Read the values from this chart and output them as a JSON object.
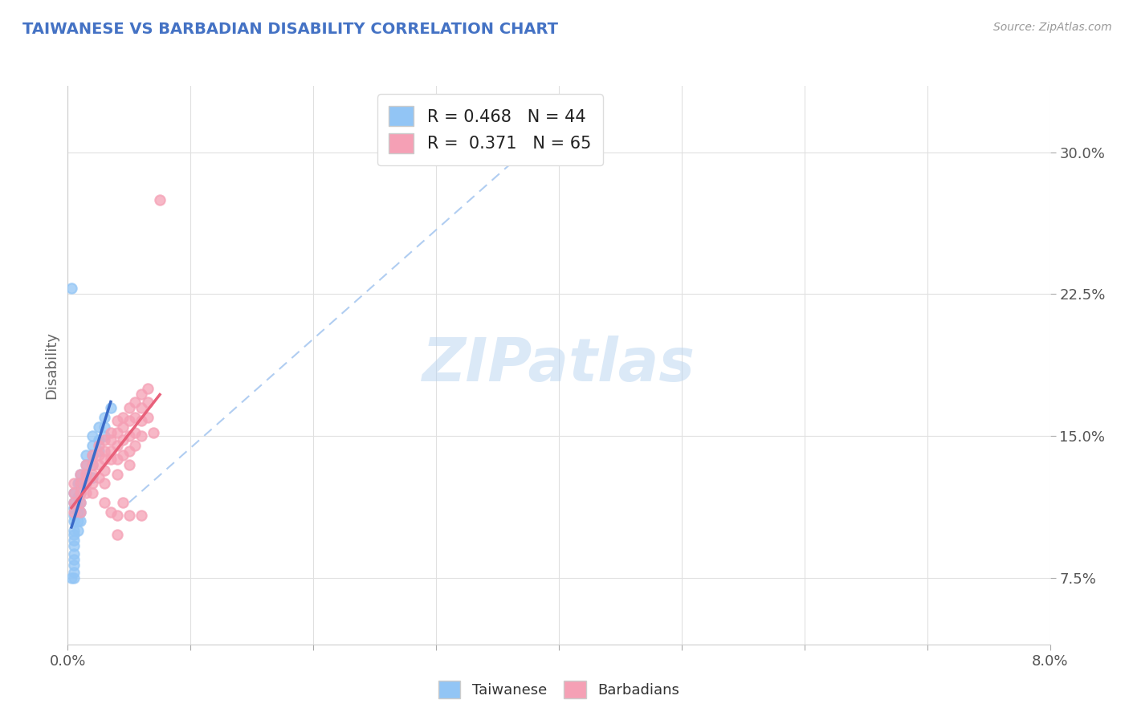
{
  "title": "TAIWANESE VS BARBADIAN DISABILITY CORRELATION CHART",
  "source": "Source: ZipAtlas.com",
  "ylabel": "Disability",
  "ylabel_ticks": [
    "7.5%",
    "15.0%",
    "22.5%",
    "30.0%"
  ],
  "ytick_vals": [
    0.075,
    0.15,
    0.225,
    0.3
  ],
  "xlim": [
    0.0,
    0.08
  ],
  "ylim": [
    0.04,
    0.335
  ],
  "legend_r1": "R = 0.468   N = 44",
  "legend_r2": "R =  0.371   N = 65",
  "taiwanese_color": "#92C5F5",
  "barbadian_color": "#F5A0B5",
  "taiwanese_line_color": "#3A6AC8",
  "barbadian_line_color": "#E8607A",
  "dashed_line_color": "#A8C8F0",
  "background_color": "#FFFFFF",
  "grid_color": "#E0E0E0",
  "watermark": "ZIPatlas",
  "taiwanese_points": [
    [
      0.0005,
      0.12
    ],
    [
      0.0005,
      0.115
    ],
    [
      0.0005,
      0.112
    ],
    [
      0.0005,
      0.108
    ],
    [
      0.0005,
      0.105
    ],
    [
      0.0005,
      0.1
    ],
    [
      0.0005,
      0.098
    ],
    [
      0.0005,
      0.095
    ],
    [
      0.0005,
      0.092
    ],
    [
      0.0005,
      0.088
    ],
    [
      0.0005,
      0.085
    ],
    [
      0.0005,
      0.082
    ],
    [
      0.0005,
      0.078
    ],
    [
      0.0005,
      0.075
    ],
    [
      0.0008,
      0.125
    ],
    [
      0.0008,
      0.118
    ],
    [
      0.0008,
      0.113
    ],
    [
      0.0008,
      0.11
    ],
    [
      0.0008,
      0.105
    ],
    [
      0.0008,
      0.1
    ],
    [
      0.001,
      0.13
    ],
    [
      0.001,
      0.125
    ],
    [
      0.001,
      0.12
    ],
    [
      0.001,
      0.115
    ],
    [
      0.001,
      0.11
    ],
    [
      0.001,
      0.105
    ],
    [
      0.0015,
      0.14
    ],
    [
      0.0015,
      0.135
    ],
    [
      0.0015,
      0.13
    ],
    [
      0.0015,
      0.125
    ],
    [
      0.002,
      0.15
    ],
    [
      0.002,
      0.145
    ],
    [
      0.002,
      0.14
    ],
    [
      0.002,
      0.135
    ],
    [
      0.002,
      0.128
    ],
    [
      0.0025,
      0.155
    ],
    [
      0.0025,
      0.148
    ],
    [
      0.0025,
      0.142
    ],
    [
      0.003,
      0.16
    ],
    [
      0.003,
      0.155
    ],
    [
      0.003,
      0.15
    ],
    [
      0.0035,
      0.165
    ],
    [
      0.0003,
      0.075
    ],
    [
      0.0003,
      0.228
    ]
  ],
  "barbadian_points": [
    [
      0.0005,
      0.125
    ],
    [
      0.0005,
      0.12
    ],
    [
      0.0005,
      0.115
    ],
    [
      0.0005,
      0.11
    ],
    [
      0.001,
      0.13
    ],
    [
      0.001,
      0.125
    ],
    [
      0.001,
      0.12
    ],
    [
      0.001,
      0.115
    ],
    [
      0.001,
      0.11
    ],
    [
      0.0015,
      0.135
    ],
    [
      0.0015,
      0.13
    ],
    [
      0.0015,
      0.125
    ],
    [
      0.0015,
      0.12
    ],
    [
      0.002,
      0.14
    ],
    [
      0.002,
      0.135
    ],
    [
      0.002,
      0.13
    ],
    [
      0.002,
      0.125
    ],
    [
      0.002,
      0.12
    ],
    [
      0.0025,
      0.145
    ],
    [
      0.0025,
      0.14
    ],
    [
      0.0025,
      0.135
    ],
    [
      0.0025,
      0.128
    ],
    [
      0.003,
      0.148
    ],
    [
      0.003,
      0.142
    ],
    [
      0.003,
      0.138
    ],
    [
      0.003,
      0.132
    ],
    [
      0.003,
      0.125
    ],
    [
      0.0035,
      0.152
    ],
    [
      0.0035,
      0.148
    ],
    [
      0.0035,
      0.142
    ],
    [
      0.0035,
      0.138
    ],
    [
      0.004,
      0.158
    ],
    [
      0.004,
      0.152
    ],
    [
      0.004,
      0.145
    ],
    [
      0.004,
      0.138
    ],
    [
      0.004,
      0.13
    ],
    [
      0.0045,
      0.16
    ],
    [
      0.0045,
      0.155
    ],
    [
      0.0045,
      0.148
    ],
    [
      0.0045,
      0.14
    ],
    [
      0.005,
      0.165
    ],
    [
      0.005,
      0.158
    ],
    [
      0.005,
      0.15
    ],
    [
      0.005,
      0.142
    ],
    [
      0.005,
      0.135
    ],
    [
      0.0055,
      0.168
    ],
    [
      0.0055,
      0.16
    ],
    [
      0.0055,
      0.152
    ],
    [
      0.0055,
      0.145
    ],
    [
      0.006,
      0.172
    ],
    [
      0.006,
      0.165
    ],
    [
      0.006,
      0.158
    ],
    [
      0.006,
      0.15
    ],
    [
      0.0065,
      0.175
    ],
    [
      0.0065,
      0.168
    ],
    [
      0.0065,
      0.16
    ],
    [
      0.003,
      0.115
    ],
    [
      0.0035,
      0.11
    ],
    [
      0.004,
      0.108
    ],
    [
      0.004,
      0.098
    ],
    [
      0.0045,
      0.115
    ],
    [
      0.005,
      0.108
    ],
    [
      0.006,
      0.108
    ],
    [
      0.007,
      0.152
    ],
    [
      0.0075,
      0.275
    ]
  ]
}
